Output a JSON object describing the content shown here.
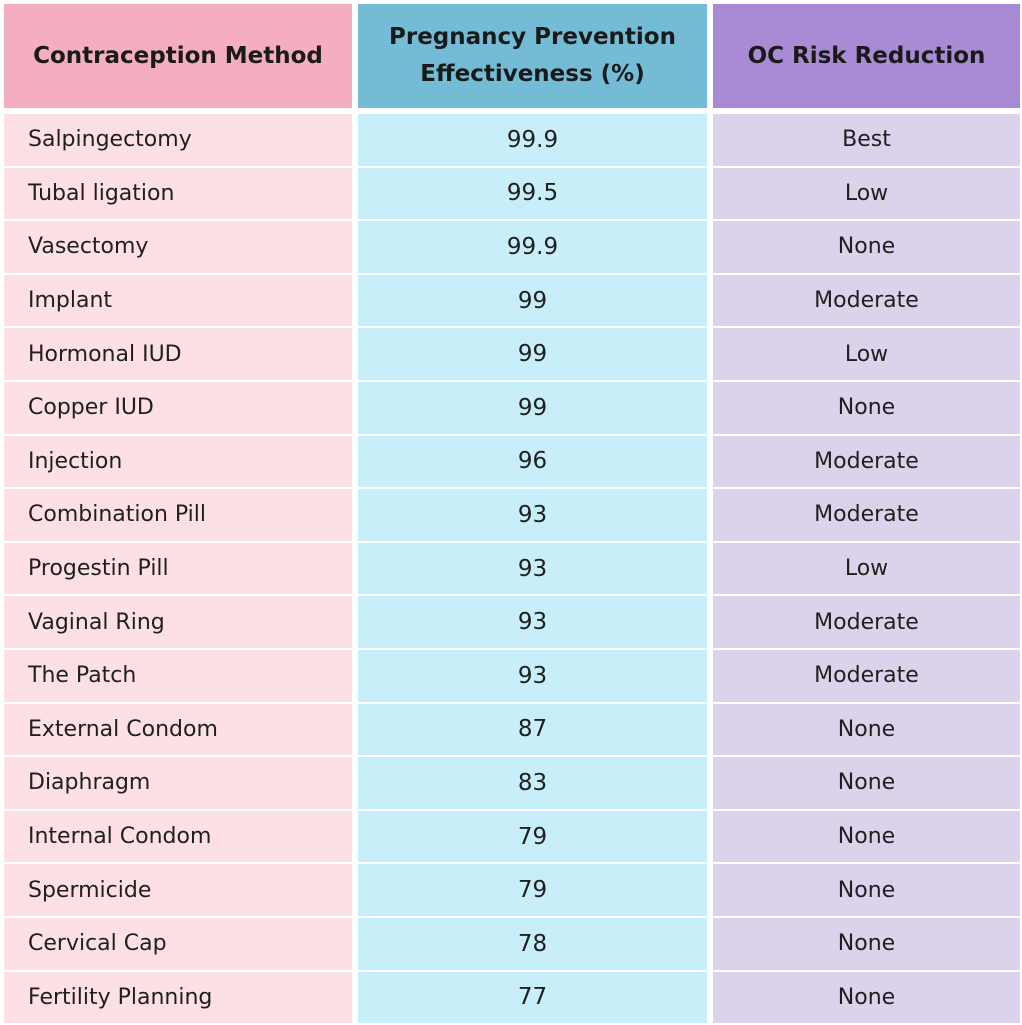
{
  "headers": {
    "method": "Contraception Method",
    "effectiveness_line1": "Pregnancy Prevention",
    "effectiveness_line2": "Effectiveness (%)",
    "oc_risk": "OC Risk Reduction"
  },
  "colors": {
    "method_header": "#f4aebf",
    "effectiveness_header": "#74bcd6",
    "oc_header": "#a98bd5",
    "method_cell": "#fde0e6",
    "effectiveness_cell": "#c8eef9",
    "oc_cell": "#dcd2eb"
  },
  "rows": [
    {
      "method": "Salpingectomy",
      "effectiveness": "99.9",
      "oc_risk": "Best"
    },
    {
      "method": "Tubal ligation",
      "effectiveness": "99.5",
      "oc_risk": "Low"
    },
    {
      "method": "Vasectomy",
      "effectiveness": "99.9",
      "oc_risk": "None"
    },
    {
      "method": "Implant",
      "effectiveness": "99",
      "oc_risk": "Moderate"
    },
    {
      "method": "Hormonal IUD",
      "effectiveness": "99",
      "oc_risk": "Low"
    },
    {
      "method": "Copper IUD",
      "effectiveness": "99",
      "oc_risk": "None"
    },
    {
      "method": "Injection",
      "effectiveness": "96",
      "oc_risk": "Moderate"
    },
    {
      "method": "Combination Pill",
      "effectiveness": "93",
      "oc_risk": "Moderate"
    },
    {
      "method": "Progestin Pill",
      "effectiveness": "93",
      "oc_risk": "Low"
    },
    {
      "method": "Vaginal Ring",
      "effectiveness": "93",
      "oc_risk": "Moderate"
    },
    {
      "method": "The Patch",
      "effectiveness": "93",
      "oc_risk": "Moderate"
    },
    {
      "method": "External Condom",
      "effectiveness": "87",
      "oc_risk": "None"
    },
    {
      "method": "Diaphragm",
      "effectiveness": "83",
      "oc_risk": "None"
    },
    {
      "method": "Internal Condom",
      "effectiveness": "79",
      "oc_risk": "None"
    },
    {
      "method": "Spermicide",
      "effectiveness": "79",
      "oc_risk": "None"
    },
    {
      "method": "Cervical Cap",
      "effectiveness": "78",
      "oc_risk": "None"
    },
    {
      "method": "Fertility Planning",
      "effectiveness": "77",
      "oc_risk": "None"
    }
  ]
}
